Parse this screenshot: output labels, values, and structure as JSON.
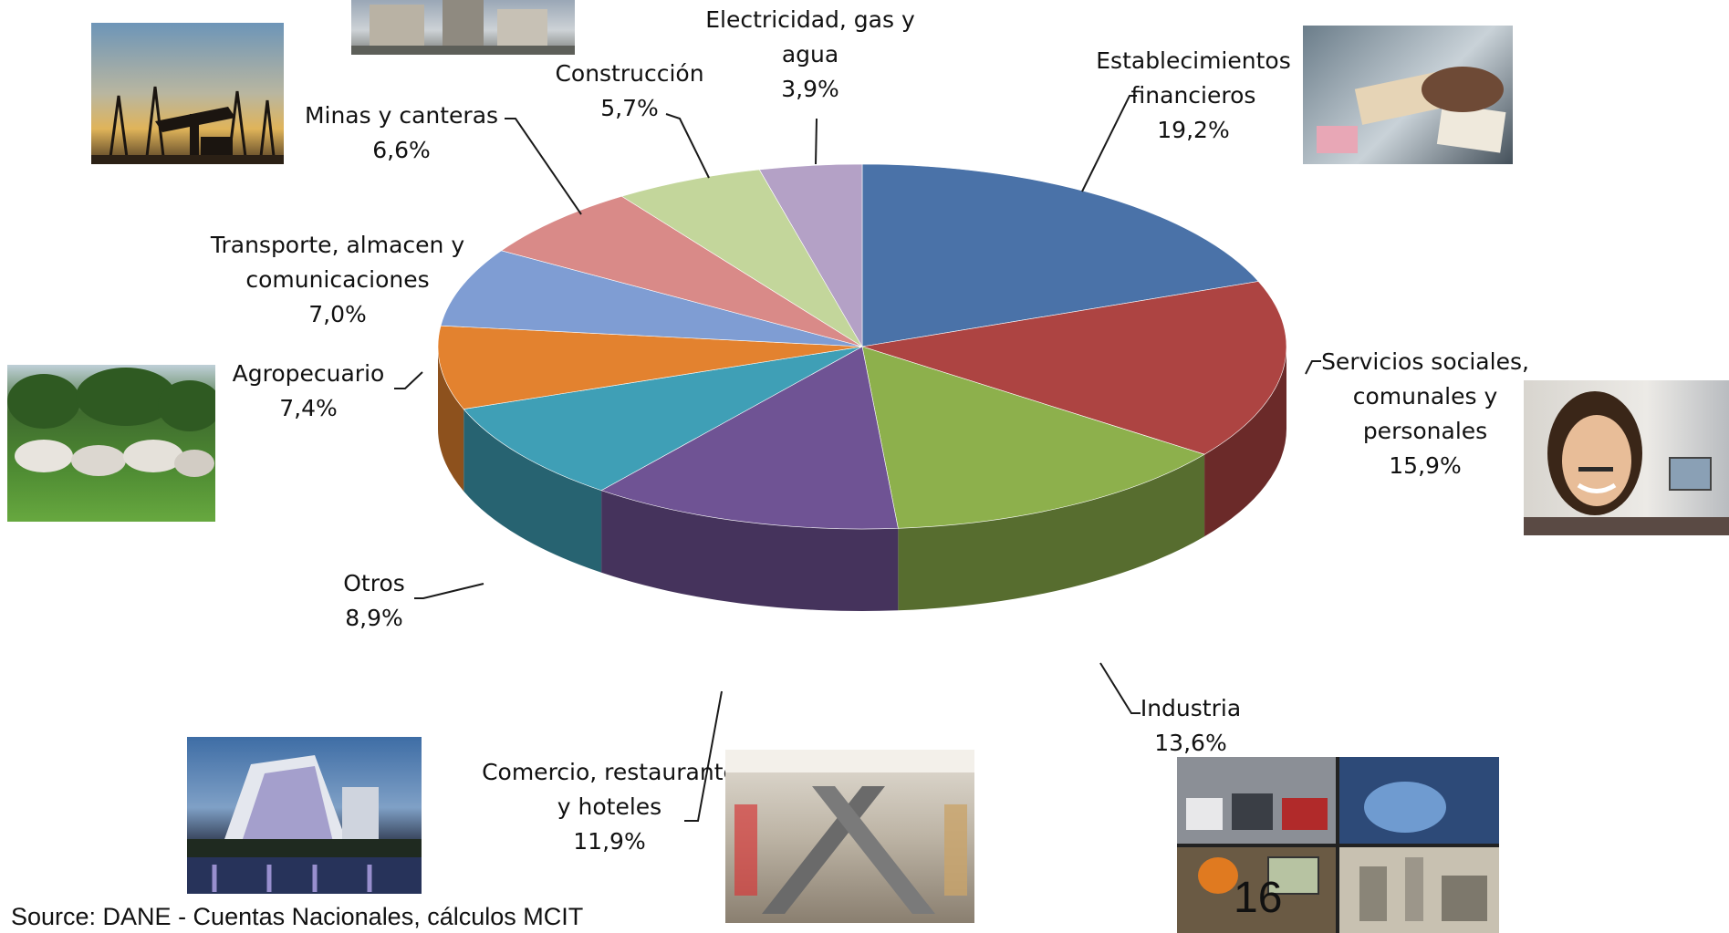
{
  "chart_data": {
    "type": "pie",
    "style": "3d-exploded-none",
    "title": "",
    "slices": [
      {
        "label": "Establecimientos financieros",
        "value": 19.2,
        "value_label": "19,2%",
        "color": "#4a72a8"
      },
      {
        "label": "Servicios sociales, comunales y personales",
        "value": 15.9,
        "value_label": "15,9%",
        "color": "#ad4442"
      },
      {
        "label": "Industria",
        "value": 13.6,
        "value_label": "13,6%",
        "color": "#8db04c"
      },
      {
        "label": "Comercio, restaurante y hoteles",
        "value": 11.9,
        "value_label": "11,9%",
        "color": "#6f5394"
      },
      {
        "label": "Otros",
        "value": 8.9,
        "value_label": "8,9%",
        "color": "#3f9fb6"
      },
      {
        "label": "Agropecuario",
        "value": 7.4,
        "value_label": "7,4%",
        "color": "#e3822f"
      },
      {
        "label": "Transporte, almacen y comunicaciones",
        "value": 7.0,
        "value_label": "7,0%",
        "color": "#7f9dd3"
      },
      {
        "label": "Minas y canteras",
        "value": 6.6,
        "value_label": "6,6%",
        "color": "#d98a88"
      },
      {
        "label": "Construcción",
        "value": 5.7,
        "value_label": "5,7%",
        "color": "#c3d69b"
      },
      {
        "label": "Electricidad, gas y agua",
        "value": 3.9,
        "value_label": "3,9%",
        "color": "#b4a1c6"
      }
    ]
  },
  "labels": [
    {
      "lines": [
        "Establecimientos",
        "financieros"
      ],
      "value": "19,2%"
    },
    {
      "lines": [
        "Servicios sociales,",
        "comunales y",
        "personales"
      ],
      "value": "15,9%"
    },
    {
      "lines": [
        "Industria"
      ],
      "value": "13,6%"
    },
    {
      "lines": [
        "Comercio, restaurante",
        "y hoteles"
      ],
      "value": "11,9%"
    },
    {
      "lines": [
        "Otros"
      ],
      "value": "8,9%"
    },
    {
      "lines": [
        "Agropecuario"
      ],
      "value": "7,4%"
    },
    {
      "lines": [
        "Transporte, almacen y",
        "comunicaciones"
      ],
      "value": "7,0%"
    },
    {
      "lines": [
        "Minas y canteras"
      ],
      "value": "6,6%"
    },
    {
      "lines": [
        "Construcción"
      ],
      "value": "5,7%"
    },
    {
      "lines": [
        "Electricidad, gas y",
        "agua"
      ],
      "value": "3,9%"
    }
  ],
  "source": "Source: DANE - Cuentas Nacionales, cálculos MCIT",
  "page_number": "16"
}
